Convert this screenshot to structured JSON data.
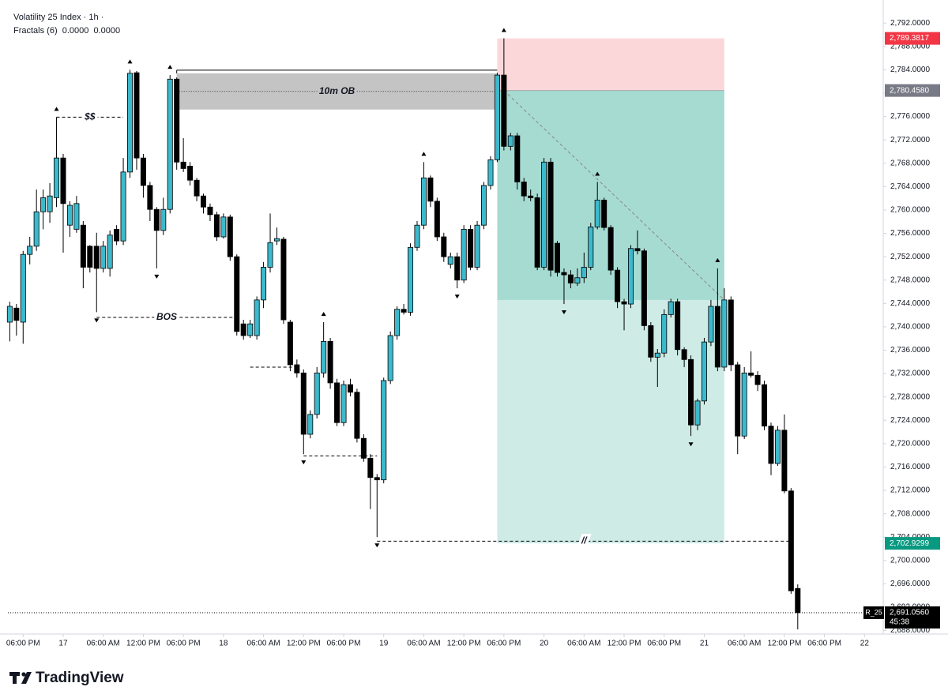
{
  "chart_data": {
    "type": "candlestick",
    "title": "Volatility 25 Index · 1h ·",
    "indicator": "Fractals (6)  0.0000  0.0000",
    "up_color": "#3cb9cc",
    "down_color": "#000000",
    "open": [
      2740.8,
      2743.2,
      2740.8,
      2752.4,
      2753.8,
      2759.7,
      2759.7,
      2762.1,
      2768.9,
      2757.4,
      2756.7,
      2757.4,
      2753.8,
      2753.8,
      2750.0,
      2750.0,
      2756.7,
      2754.7,
      2766.5,
      2783.5,
      2768.9,
      2764.2,
      2760.1,
      2756.5,
      2760.1,
      2782.4,
      2768.2,
      2767.5,
      2765.1,
      2762.4,
      2760.5,
      2759.2,
      2755.4,
      2758.8,
      2752.0,
      2740.5,
      2738.5,
      2738.5,
      2744.6,
      2750.2,
      2754.7,
      2755.0,
      2740.8,
      2733.5,
      2732.1,
      2721.6,
      2725.0,
      2732.1,
      2737.5,
      2730.4,
      2723.6,
      2730.1,
      2728.8,
      2720.9,
      2717.5,
      2714.2,
      2713.8,
      2730.8,
      2738.5,
      2743.0,
      2742.5,
      2753.6,
      2757.4,
      2765.5,
      2761.5,
      2755.4,
      2750.7,
      2752.0,
      2748.0,
      2756.7,
      2750.2,
      2757.4,
      2764.2,
      2768.6,
      2783.1,
      2770.9,
      2772.7,
      2764.8,
      2762.4,
      2762.1,
      2750.2,
      2768.2,
      2754.3,
      2749.3,
      2748.9,
      2747.5,
      2748.4,
      2750.2,
      2757.1,
      2761.7,
      2757.0,
      2749.7,
      2744.3,
      2743.9,
      2753.4,
      2753.0,
      2740.2,
      2734.8,
      2735.5,
      2742.1,
      2744.3,
      2736.1,
      2734.4,
      2723.2,
      2727.3,
      2737.4,
      2743.5,
      2733.1,
      2744.6,
      2733.5,
      2721.3,
      2732.1,
      2731.7,
      2730.1,
      2723.0,
      2716.6,
      2722.3,
      2711.9,
      2695.2
    ],
    "high": [
      2744.3,
      2743.9,
      2753.0,
      2755.4,
      2763.5,
      2763.5,
      2764.6,
      2775.9,
      2769.6,
      2761.5,
      2762.4,
      2758.1,
      2754.0,
      2756.1,
      2754.7,
      2756.5,
      2757.4,
      2768.9,
      2784.0,
      2783.8,
      2769.6,
      2764.8,
      2760.5,
      2762.1,
      2783.1,
      2782.7,
      2772.3,
      2768.2,
      2765.5,
      2762.8,
      2761.1,
      2759.7,
      2759.4,
      2759.2,
      2752.4,
      2741.2,
      2741.2,
      2745.2,
      2751.1,
      2759.4,
      2757.0,
      2755.4,
      2741.2,
      2734.4,
      2732.7,
      2725.7,
      2733.1,
      2740.8,
      2738.1,
      2731.1,
      2730.8,
      2731.1,
      2729.4,
      2721.6,
      2718.2,
      2714.8,
      2731.3,
      2739.2,
      2743.5,
      2743.9,
      2754.3,
      2758.1,
      2768.2,
      2765.9,
      2762.1,
      2756.1,
      2752.7,
      2752.7,
      2757.4,
      2757.4,
      2758.1,
      2764.8,
      2769.2,
      2783.5,
      2789.4,
      2773.2,
      2773.2,
      2765.5,
      2763.5,
      2762.8,
      2768.9,
      2768.9,
      2754.7,
      2750.0,
      2749.7,
      2750.0,
      2752.7,
      2757.8,
      2764.8,
      2762.1,
      2757.4,
      2750.2,
      2744.8,
      2754.0,
      2756.5,
      2753.4,
      2740.8,
      2736.2,
      2743.0,
      2744.8,
      2744.8,
      2736.5,
      2735.1,
      2727.7,
      2738.1,
      2744.6,
      2750.0,
      2746.6,
      2745.2,
      2734.0,
      2733.1,
      2735.8,
      2732.4,
      2730.8,
      2723.6,
      2723.0,
      2725.0,
      2712.4,
      2695.9
    ],
    "low": [
      2737.5,
      2738.5,
      2737.1,
      2750.7,
      2753.0,
      2756.7,
      2757.8,
      2760.5,
      2752.7,
      2755.4,
      2756.1,
      2746.6,
      2749.3,
      2742.5,
      2749.3,
      2748.6,
      2754.0,
      2754.0,
      2765.5,
      2766.9,
      2762.1,
      2758.1,
      2750.0,
      2755.7,
      2759.4,
      2766.9,
      2766.5,
      2764.2,
      2761.5,
      2759.4,
      2758.1,
      2754.7,
      2755.1,
      2751.3,
      2738.5,
      2737.8,
      2738.1,
      2737.8,
      2743.2,
      2749.3,
      2754.0,
      2740.5,
      2732.4,
      2731.3,
      2718.2,
      2720.9,
      2724.3,
      2731.3,
      2729.4,
      2723.0,
      2723.0,
      2728.1,
      2720.2,
      2716.9,
      2708.8,
      2704.0,
      2713.2,
      2730.2,
      2737.8,
      2742.1,
      2741.9,
      2753.0,
      2756.7,
      2760.5,
      2754.7,
      2751.1,
      2750.0,
      2746.6,
      2747.5,
      2749.7,
      2749.7,
      2756.7,
      2763.5,
      2768.2,
      2770.2,
      2770.2,
      2763.5,
      2761.5,
      2761.5,
      2749.7,
      2749.7,
      2748.6,
      2748.6,
      2743.9,
      2746.6,
      2747.0,
      2747.5,
      2749.7,
      2756.7,
      2756.5,
      2748.9,
      2743.2,
      2739.4,
      2743.2,
      2752.4,
      2739.4,
      2734.0,
      2729.7,
      2734.8,
      2741.6,
      2735.1,
      2733.1,
      2721.3,
      2722.3,
      2726.7,
      2736.7,
      2732.4,
      2732.4,
      2732.4,
      2718.2,
      2720.8,
      2731.3,
      2729.0,
      2722.3,
      2714.6,
      2716.2,
      2711.5,
      2694.3,
      2688.2
    ],
    "close": [
      2743.5,
      2741.1,
      2752.4,
      2753.8,
      2759.7,
      2762.1,
      2762.4,
      2768.9,
      2761.1,
      2760.8,
      2761.1,
      2750.2,
      2750.2,
      2750.0,
      2753.8,
      2755.7,
      2754.7,
      2766.5,
      2783.4,
      2768.9,
      2764.2,
      2760.1,
      2756.5,
      2760.1,
      2782.4,
      2768.2,
      2767.1,
      2765.1,
      2762.4,
      2760.5,
      2759.2,
      2755.4,
      2758.8,
      2752.0,
      2739.2,
      2738.5,
      2740.5,
      2744.6,
      2750.2,
      2754.4,
      2755.1,
      2741.2,
      2733.5,
      2732.1,
      2721.6,
      2725.0,
      2732.1,
      2737.5,
      2730.4,
      2723.6,
      2730.1,
      2728.8,
      2720.9,
      2717.5,
      2714.2,
      2713.8,
      2730.8,
      2738.5,
      2743.0,
      2742.5,
      2753.6,
      2757.4,
      2765.5,
      2761.5,
      2755.4,
      2752.0,
      2752.0,
      2748.0,
      2756.7,
      2750.2,
      2757.4,
      2764.2,
      2768.6,
      2783.1,
      2770.9,
      2772.7,
      2764.8,
      2762.4,
      2762.1,
      2750.2,
      2768.2,
      2749.7,
      2749.3,
      2748.9,
      2747.5,
      2748.4,
      2750.2,
      2757.1,
      2761.7,
      2757.0,
      2749.7,
      2744.3,
      2743.9,
      2753.4,
      2753.0,
      2740.2,
      2734.8,
      2735.5,
      2742.1,
      2744.3,
      2736.1,
      2734.4,
      2723.2,
      2727.3,
      2737.4,
      2743.5,
      2733.1,
      2744.6,
      2733.5,
      2721.3,
      2732.1,
      2731.7,
      2730.1,
      2723.0,
      2716.6,
      2722.3,
      2711.9,
      2694.8,
      2691.056
    ],
    "xlim": [
      -0.28,
      130.8
    ],
    "xticks": [
      {
        "value": 2,
        "label": "06:00 PM"
      },
      {
        "value": 8,
        "label": "17"
      },
      {
        "value": 14,
        "label": "06:00 AM"
      },
      {
        "value": 20,
        "label": "12:00 PM"
      },
      {
        "value": 26,
        "label": "06:00 PM"
      },
      {
        "value": 32,
        "label": "18"
      },
      {
        "value": 38,
        "label": "06:00 AM"
      },
      {
        "value": 44,
        "label": "12:00 PM"
      },
      {
        "value": 50,
        "label": "06:00 PM"
      },
      {
        "value": 56,
        "label": "19"
      },
      {
        "value": 62,
        "label": "06:00 AM"
      },
      {
        "value": 68,
        "label": "12:00 PM"
      },
      {
        "value": 74,
        "label": "06:00 PM"
      },
      {
        "value": 80,
        "label": "20"
      },
      {
        "value": 86,
        "label": "06:00 AM"
      },
      {
        "value": 92,
        "label": "12:00 PM"
      },
      {
        "value": 98,
        "label": "06:00 PM"
      },
      {
        "value": 104,
        "label": "21"
      },
      {
        "value": 110,
        "label": "06:00 AM"
      },
      {
        "value": 116,
        "label": "12:00 PM"
      },
      {
        "value": 122,
        "label": "06:00 PM"
      },
      {
        "value": 128,
        "label": "22"
      }
    ],
    "ylim": [
      2687.4,
      2794.6
    ],
    "yticks": [
      {
        "value": 2688,
        "label": "2,688.0000"
      },
      {
        "value": 2692,
        "label": "2,692.0000"
      },
      {
        "value": 2696,
        "label": "2,696.0000"
      },
      {
        "value": 2700,
        "label": "2,700.0000"
      },
      {
        "value": 2704,
        "label": "2,704.0000"
      },
      {
        "value": 2708,
        "label": "2,708.0000"
      },
      {
        "value": 2712,
        "label": "2,712.0000"
      },
      {
        "value": 2716,
        "label": "2,716.0000"
      },
      {
        "value": 2720,
        "label": "2,720.0000"
      },
      {
        "value": 2724,
        "label": "2,724.0000"
      },
      {
        "value": 2728,
        "label": "2,728.0000"
      },
      {
        "value": 2732,
        "label": "2,732.0000"
      },
      {
        "value": 2736,
        "label": "2,736.0000"
      },
      {
        "value": 2740,
        "label": "2,740.0000"
      },
      {
        "value": 2744,
        "label": "2,744.0000"
      },
      {
        "value": 2748,
        "label": "2,748.0000"
      },
      {
        "value": 2752,
        "label": "2,752.0000"
      },
      {
        "value": 2756,
        "label": "2,756.0000"
      },
      {
        "value": 2760,
        "label": "2,760.0000"
      },
      {
        "value": 2764,
        "label": "2,764.0000"
      },
      {
        "value": 2768,
        "label": "2,768.0000"
      },
      {
        "value": 2772,
        "label": "2,772.0000"
      },
      {
        "value": 2776,
        "label": "2,776.0000"
      },
      {
        "value": 2780,
        "label": "2,780.0000"
      },
      {
        "value": 2784,
        "label": "2,784.0000"
      },
      {
        "value": 2788,
        "label": "2,788.0000"
      },
      {
        "value": 2792,
        "label": "2,792.0000"
      }
    ],
    "grid": false,
    "order_block": {
      "label": "10m OB",
      "top": 2783.4,
      "bottom": 2777.2,
      "start": 25,
      "end": 73
    },
    "levels": [
      {
        "label": "$$",
        "value": 2775.9,
        "start": 7,
        "end": 17
      },
      {
        "label": "BOS",
        "value": 2741.6,
        "start": 13,
        "end": 34
      },
      {
        "value": 2733.1,
        "start": 36,
        "end": 43
      },
      {
        "value": 2717.9,
        "start": 44,
        "end": 55
      },
      {
        "label": "//",
        "value": 2703.3,
        "start": 55,
        "end": 117
      }
    ],
    "position": {
      "start": 73,
      "end": 107,
      "stop": {
        "value": 2789.3817,
        "label": "2,789.3817",
        "color": "#f23645"
      },
      "entry": {
        "value": 2780.458,
        "label": "2,780.4580",
        "color": "#787b86"
      },
      "target": {
        "value": 2702.9299,
        "label": "2,702.9299",
        "color": "#089981"
      }
    },
    "last_price": {
      "value": 2691.056,
      "label": "2,691.0560"
    },
    "symbol": "R_25",
    "countdown": "45:38"
  },
  "brand": "TradingView"
}
